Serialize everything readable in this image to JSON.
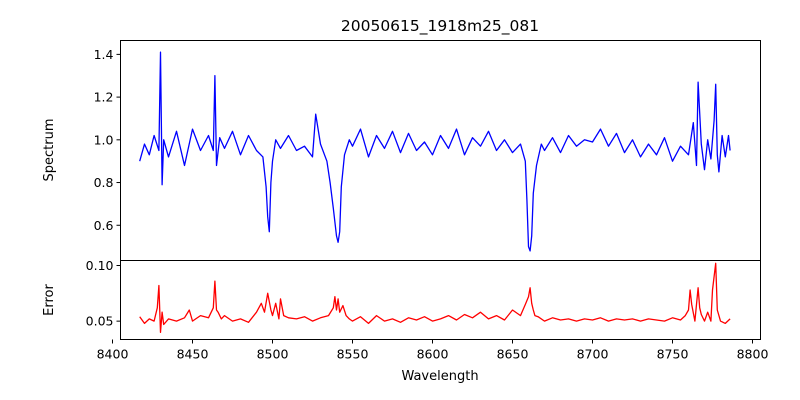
{
  "chart_data": {
    "type": "line",
    "title": "20050615_1918m25_081",
    "xlabel": "Wavelength",
    "xlim": [
      8405,
      8805
    ],
    "xticks": [
      8400,
      8450,
      8500,
      8550,
      8600,
      8650,
      8700,
      8750,
      8800
    ],
    "grid": false,
    "panels": [
      {
        "id": "spectrum",
        "ylabel": "Spectrum",
        "ylim": [
          0.435,
          1.465
        ],
        "yticks": [
          0.6,
          0.8,
          1.0,
          1.2,
          1.4
        ],
        "color": "#0000ff",
        "series": [
          {
            "x": [
              8417,
              8420,
              8423,
              8426,
              8429,
              8430,
              8431,
              8432,
              8435,
              8440,
              8445,
              8450,
              8455,
              8460,
              8463,
              8464,
              8465,
              8467,
              8470,
              8475,
              8480,
              8485,
              8490,
              8494,
              8496,
              8497,
              8498,
              8499,
              8500,
              8502,
              8505,
              8510,
              8515,
              8520,
              8525,
              8527,
              8530,
              8534,
              8536,
              8538,
              8540,
              8541,
              8542,
              8543,
              8545,
              8548,
              8550,
              8555,
              8560,
              8565,
              8570,
              8575,
              8580,
              8585,
              8590,
              8595,
              8600,
              8605,
              8610,
              8615,
              8620,
              8625,
              8630,
              8635,
              8640,
              8645,
              8650,
              8655,
              8658,
              8659,
              8660,
              8661,
              8662,
              8663,
              8665,
              8668,
              8670,
              8675,
              8680,
              8685,
              8690,
              8695,
              8700,
              8705,
              8710,
              8715,
              8720,
              8725,
              8730,
              8735,
              8740,
              8745,
              8750,
              8755,
              8760,
              8763,
              8765,
              8766,
              8768,
              8770,
              8772,
              8774,
              8776,
              8777,
              8778,
              8779,
              8781,
              8783,
              8785,
              8786
            ],
            "values": [
              0.9,
              0.98,
              0.93,
              1.02,
              0.95,
              1.41,
              0.79,
              1.0,
              0.92,
              1.04,
              0.88,
              1.05,
              0.95,
              1.02,
              0.95,
              1.3,
              0.88,
              1.01,
              0.96,
              1.04,
              0.93,
              1.02,
              0.95,
              0.92,
              0.78,
              0.64,
              0.57,
              0.8,
              0.9,
              1.0,
              0.96,
              1.02,
              0.95,
              0.97,
              0.92,
              1.12,
              0.98,
              0.9,
              0.8,
              0.68,
              0.55,
              0.52,
              0.57,
              0.78,
              0.93,
              1.0,
              0.97,
              1.05,
              0.92,
              1.02,
              0.96,
              1.04,
              0.94,
              1.03,
              0.95,
              0.99,
              0.93,
              1.02,
              0.96,
              1.05,
              0.93,
              1.01,
              0.97,
              1.04,
              0.95,
              1.0,
              0.94,
              0.98,
              0.9,
              0.72,
              0.5,
              0.48,
              0.55,
              0.75,
              0.88,
              0.98,
              0.95,
              1.01,
              0.94,
              1.02,
              0.97,
              1.0,
              0.99,
              1.05,
              0.97,
              1.03,
              0.94,
              1.0,
              0.92,
              0.98,
              0.93,
              1.01,
              0.9,
              0.97,
              0.93,
              1.08,
              0.88,
              1.27,
              0.98,
              0.86,
              1.0,
              0.91,
              1.09,
              1.26,
              0.93,
              0.85,
              1.02,
              0.92,
              1.02,
              0.95
            ]
          }
        ]
      },
      {
        "id": "error",
        "ylabel": "Error",
        "ylim": [
          0.0335,
          0.1045
        ],
        "yticks": [
          0.05,
          0.1
        ],
        "color": "#ff0000",
        "series": [
          {
            "x": [
              8417,
              8420,
              8423,
              8426,
              8428,
              8429,
              8430,
              8431,
              8432,
              8435,
              8440,
              8445,
              8448,
              8450,
              8452,
              8455,
              8460,
              8463,
              8464,
              8465,
              8466,
              8468,
              8470,
              8475,
              8480,
              8485,
              8490,
              8493,
              8495,
              8497,
              8499,
              8500,
              8502,
              8504,
              8505,
              8507,
              8510,
              8515,
              8520,
              8525,
              8530,
              8535,
              8538,
              8539,
              8540,
              8541,
              8542,
              8544,
              8546,
              8548,
              8550,
              8555,
              8560,
              8565,
              8570,
              8575,
              8580,
              8585,
              8590,
              8595,
              8600,
              8605,
              8610,
              8615,
              8620,
              8625,
              8630,
              8635,
              8640,
              8645,
              8650,
              8655,
              8658,
              8660,
              8661,
              8662,
              8663,
              8664,
              8666,
              8670,
              8675,
              8680,
              8685,
              8690,
              8695,
              8700,
              8705,
              8710,
              8715,
              8720,
              8725,
              8730,
              8735,
              8740,
              8745,
              8750,
              8755,
              8758,
              8760,
              8761,
              8762,
              8764,
              8766,
              8767,
              8768,
              8770,
              8772,
              8774,
              8775,
              8776,
              8777,
              8778,
              8780,
              8783,
              8786
            ],
            "values": [
              0.054,
              0.048,
              0.052,
              0.05,
              0.062,
              0.082,
              0.04,
              0.058,
              0.047,
              0.052,
              0.05,
              0.053,
              0.06,
              0.05,
              0.052,
              0.055,
              0.053,
              0.062,
              0.086,
              0.06,
              0.058,
              0.052,
              0.055,
              0.05,
              0.052,
              0.049,
              0.058,
              0.066,
              0.058,
              0.075,
              0.06,
              0.055,
              0.066,
              0.052,
              0.07,
              0.055,
              0.053,
              0.052,
              0.054,
              0.05,
              0.053,
              0.055,
              0.062,
              0.072,
              0.06,
              0.07,
              0.058,
              0.064,
              0.055,
              0.052,
              0.05,
              0.054,
              0.048,
              0.055,
              0.05,
              0.052,
              0.049,
              0.053,
              0.051,
              0.054,
              0.05,
              0.052,
              0.055,
              0.051,
              0.056,
              0.053,
              0.058,
              0.052,
              0.055,
              0.051,
              0.06,
              0.055,
              0.065,
              0.072,
              0.08,
              0.066,
              0.06,
              0.055,
              0.054,
              0.05,
              0.053,
              0.051,
              0.052,
              0.05,
              0.052,
              0.051,
              0.053,
              0.05,
              0.052,
              0.051,
              0.052,
              0.05,
              0.052,
              0.051,
              0.05,
              0.053,
              0.051,
              0.055,
              0.06,
              0.078,
              0.065,
              0.05,
              0.08,
              0.062,
              0.056,
              0.05,
              0.058,
              0.05,
              0.078,
              0.09,
              0.102,
              0.06,
              0.05,
              0.048,
              0.052
            ]
          }
        ]
      }
    ]
  }
}
